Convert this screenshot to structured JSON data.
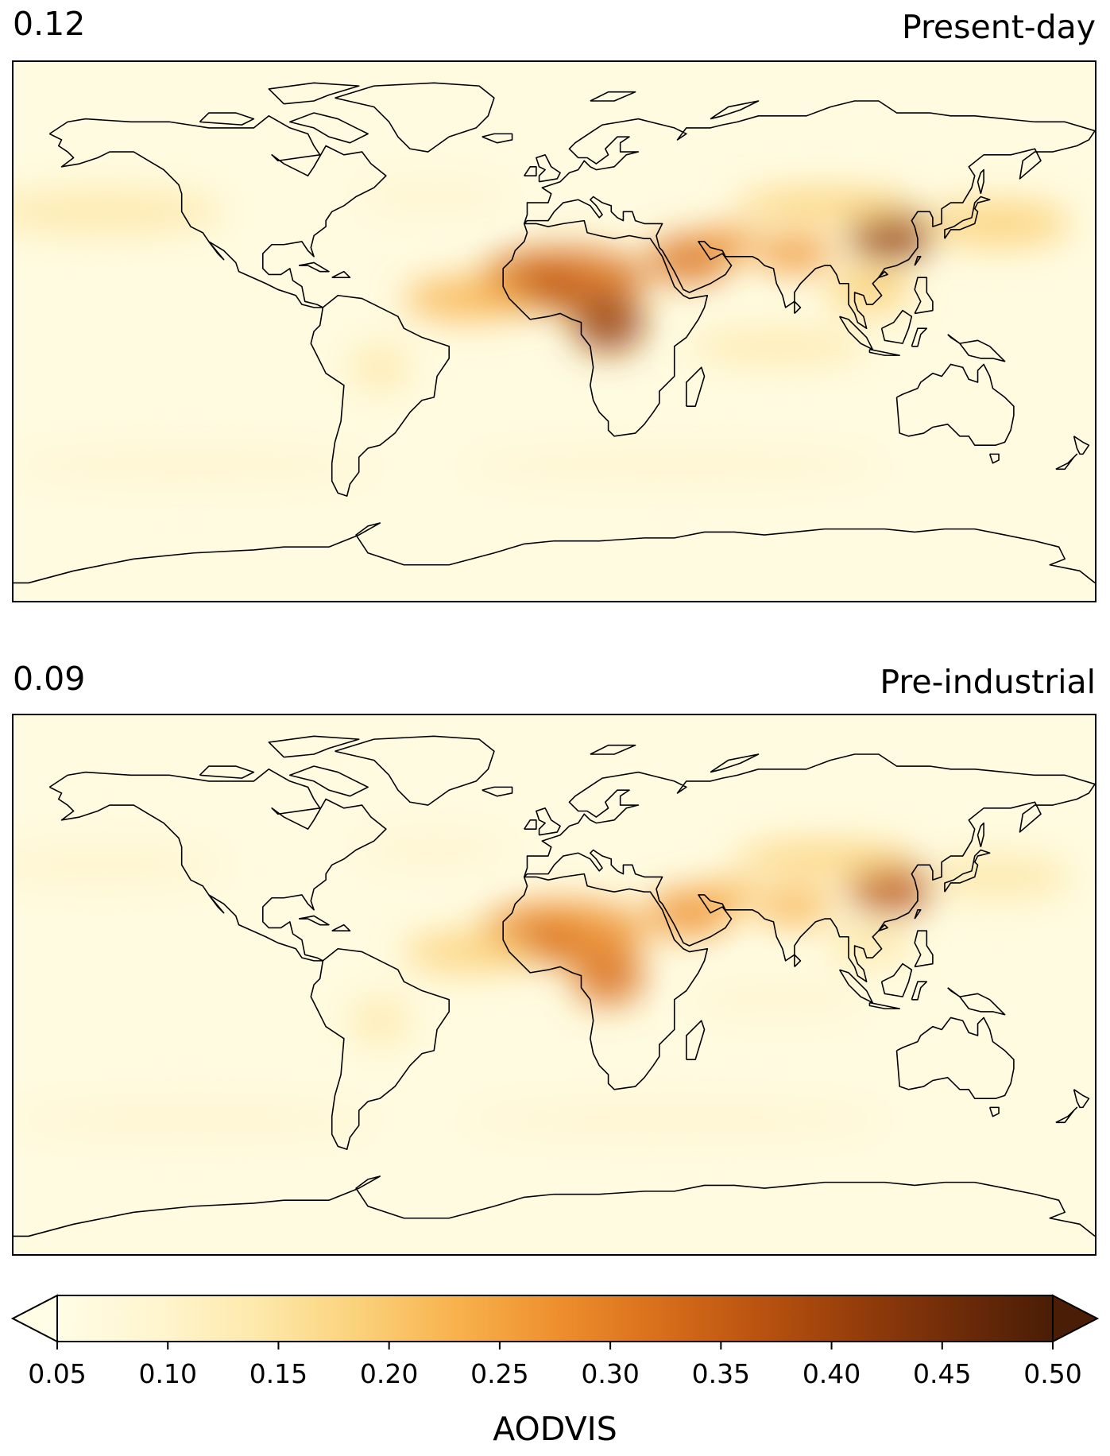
{
  "panels": [
    {
      "global_mean": "0.12",
      "scenario": "Present-day",
      "field_intensity": 1.0
    },
    {
      "global_mean": "0.09",
      "scenario": "Pre-industrial",
      "field_intensity": 0.82
    }
  ],
  "colorbar": {
    "label": "AODVIS",
    "ticks": [
      "0.05",
      "0.10",
      "0.15",
      "0.20",
      "0.25",
      "0.30",
      "0.35",
      "0.40",
      "0.45",
      "0.50"
    ],
    "range": [
      0.05,
      0.5
    ],
    "extend": "both",
    "colormap": [
      "#fffde6",
      "#fff5cf",
      "#fde9ab",
      "#fbd27b",
      "#f8b24d",
      "#ee902e",
      "#d9701c",
      "#bb5410",
      "#963e0b",
      "#6f2c09",
      "#4a1d06"
    ]
  },
  "colors": {
    "coastline": "#000000",
    "frame": "#000000"
  }
}
